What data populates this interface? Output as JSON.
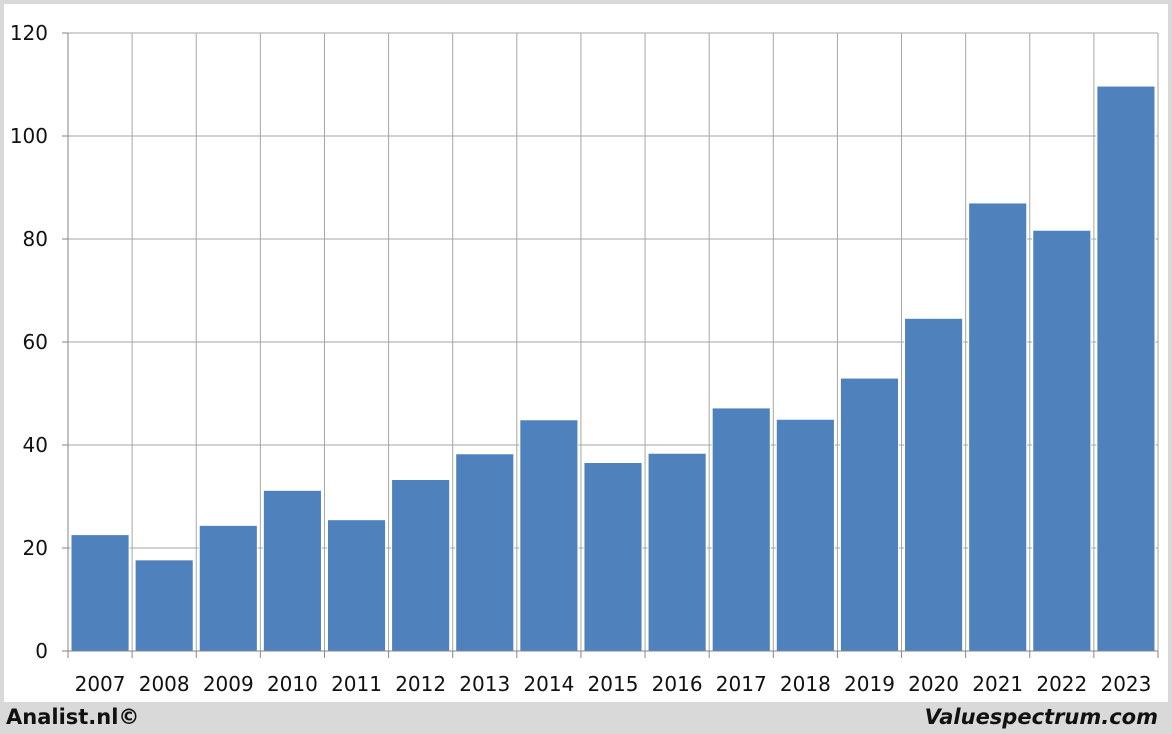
{
  "chart_data": {
    "type": "bar",
    "categories": [
      "2007",
      "2008",
      "2009",
      "2010",
      "2011",
      "2012",
      "2013",
      "2014",
      "2015",
      "2016",
      "2017",
      "2018",
      "2019",
      "2020",
      "2021",
      "2022",
      "2023"
    ],
    "values": [
      22.6,
      17.7,
      24.4,
      31.2,
      25.5,
      33.3,
      38.3,
      44.9,
      36.6,
      38.4,
      47.2,
      45.0,
      53.0,
      64.6,
      87.0,
      81.7,
      109.7
    ],
    "yticks": [
      "0",
      "20",
      "40",
      "60",
      "80",
      "100",
      "120"
    ],
    "ylim": [
      0,
      120
    ],
    "grid": true,
    "bar_color": "#4f81bd"
  },
  "footer": {
    "left": "Analist.nl©",
    "right": "Valuespectrum.com"
  }
}
